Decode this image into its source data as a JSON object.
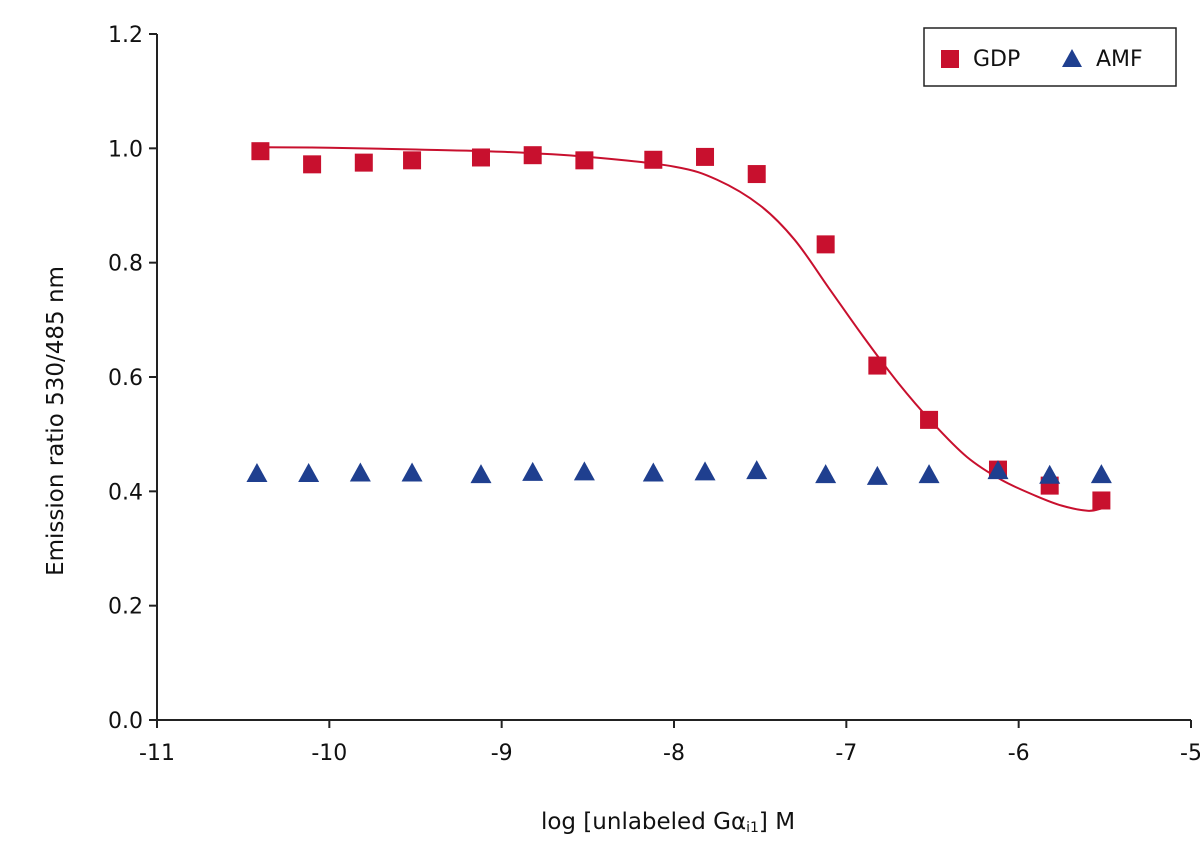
{
  "chart_data": {
    "type": "scatter",
    "title": "",
    "xlabel": {
      "pre": "log [unlabeled G",
      "alpha": "α",
      "sub": "i1",
      "post": "] M"
    },
    "ylabel": "Emission ratio 530/485 nm",
    "xlim": [
      -11,
      -5
    ],
    "ylim": [
      0,
      1.2
    ],
    "xticks": [
      -11,
      -10,
      -9,
      -8,
      -7,
      -6,
      -5
    ],
    "yticks": [
      0,
      0.2,
      0.4,
      0.6,
      0.8,
      1.0,
      1.2
    ],
    "xtick_labels": [
      "-11",
      "-10",
      "-9",
      "-8",
      "-7",
      "-6",
      "-5"
    ],
    "ytick_labels": [
      "0.0",
      "0.2",
      "0.4",
      "0.6",
      "0.8",
      "1.0",
      "1.2"
    ],
    "grid": false,
    "legend_position": "top-right",
    "series": [
      {
        "name": "GDP",
        "marker": "square",
        "color": "#c8102e",
        "x": [
          -10.4,
          -10.1,
          -9.8,
          -9.52,
          -9.12,
          -8.82,
          -8.52,
          -8.12,
          -7.82,
          -7.52,
          -7.12,
          -6.82,
          -6.52,
          -6.12,
          -5.82,
          -5.52
        ],
        "y": [
          0.995,
          0.972,
          0.975,
          0.979,
          0.984,
          0.988,
          0.979,
          0.98,
          0.985,
          0.955,
          0.832,
          0.62,
          0.525,
          0.438,
          0.41,
          0.384
        ]
      },
      {
        "name": "AMF",
        "marker": "triangle",
        "color": "#1f3f8f",
        "x": [
          -10.42,
          -10.12,
          -9.82,
          -9.52,
          -9.12,
          -8.82,
          -8.52,
          -8.12,
          -7.82,
          -7.52,
          -7.12,
          -6.82,
          -6.52,
          -6.12,
          -5.82,
          -5.52
        ],
        "y": [
          0.432,
          0.432,
          0.433,
          0.433,
          0.43,
          0.434,
          0.435,
          0.433,
          0.435,
          0.437,
          0.43,
          0.427,
          0.43,
          0.437,
          0.429,
          0.43
        ]
      }
    ],
    "fit_curve": {
      "series": "GDP",
      "color": "#c8102e",
      "x": [
        -10.4,
        -10.0,
        -9.5,
        -9.0,
        -8.5,
        -8.0,
        -7.75,
        -7.5,
        -7.3,
        -7.1,
        -6.9,
        -6.7,
        -6.5,
        -6.3,
        -6.1,
        -5.9,
        -5.75,
        -5.6,
        -5.52
      ],
      "y": [
        1.002,
        1.001,
        0.998,
        0.994,
        0.985,
        0.968,
        0.945,
        0.9,
        0.84,
        0.755,
        0.67,
        0.59,
        0.52,
        0.46,
        0.42,
        0.392,
        0.375,
        0.366,
        0.37
      ]
    }
  }
}
